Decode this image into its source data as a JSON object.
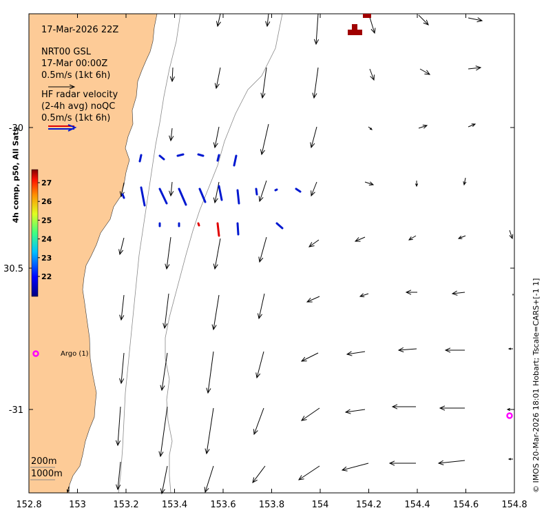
{
  "title": "17-Mar-2026 22Z",
  "model_legend": {
    "source": "NRT00 GSL",
    "time": "17-Mar 00:00Z",
    "scale": "0.5m/s (1kt 6h)"
  },
  "radar_legend": {
    "line1": "HF radar velocity",
    "line2": "(2-4h avg) noQC",
    "scale": "0.5m/s (1kt 6h)"
  },
  "colorbar": {
    "title": "4h comp, p50, All Sats",
    "ticks": [
      "27",
      "26",
      "25",
      "24",
      "23",
      "22"
    ]
  },
  "x_ticks": [
    "152.8",
    "153",
    "153.2",
    "153.4",
    "153.6",
    "153.8",
    "154",
    "154.2",
    "154.4",
    "154.6",
    "154.8"
  ],
  "y_ticks": [
    "-30",
    "30.5",
    "-31"
  ],
  "argo": {
    "label": "Argo (1)",
    "marker": "o"
  },
  "isobaths": [
    "200m",
    "1000m"
  ],
  "credit": "© IMOS 20-Mar-2026 18:01 Hobart; Tscale=CARS+[-1 1]",
  "colors": {
    "land": "#fdcb97",
    "radar_blue": "#0018d0",
    "radar_red": "#e00000",
    "argo": "#ff00ff",
    "sst_hot": "#a00000"
  }
}
